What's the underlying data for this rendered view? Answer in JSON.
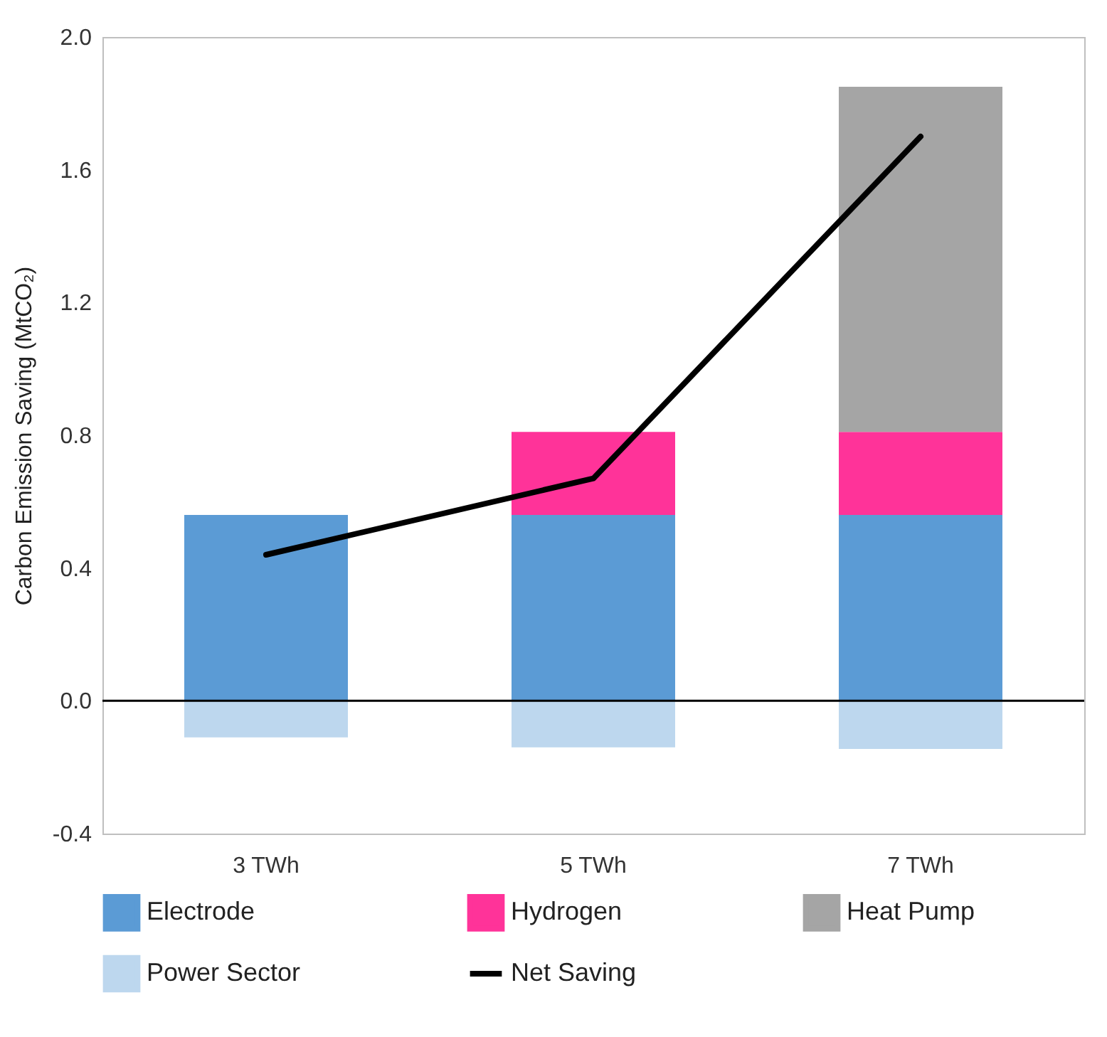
{
  "chart_data": {
    "type": "bar",
    "stacked": true,
    "ylabel": "Carbon Emission Saving (MtCO₂)",
    "categories": [
      "3 TWh",
      "5 TWh",
      "7 TWh"
    ],
    "series": [
      {
        "name": "Electrode",
        "color": "#5b9bd5",
        "values": [
          0.56,
          0.56,
          0.56
        ]
      },
      {
        "name": "Hydrogen",
        "color": "#ff3399",
        "values": [
          null,
          0.25,
          0.25
        ]
      },
      {
        "name": "Heat Pump",
        "color": "#a5a5a5",
        "values": [
          null,
          null,
          1.04
        ]
      },
      {
        "name": "Power Sector",
        "color": "#bdd7ee",
        "values": [
          -0.11,
          -0.14,
          -0.145
        ]
      },
      {
        "name": "Net Saving",
        "type": "line",
        "color": "#000000",
        "values": [
          0.44,
          0.67,
          1.7
        ]
      }
    ],
    "ylim": [
      -0.4,
      2.0
    ],
    "yticks": [
      -0.4,
      {
        "value": 0,
        "label": "0.0"
      },
      0.4,
      0.8,
      1.2,
      1.6,
      {
        "value": 2,
        "label": "2.0"
      }
    ],
    "ref_lines": [
      {
        "axis": "y",
        "value": 0,
        "color": "#000000"
      }
    ],
    "grid": false,
    "legend": "bottom"
  }
}
